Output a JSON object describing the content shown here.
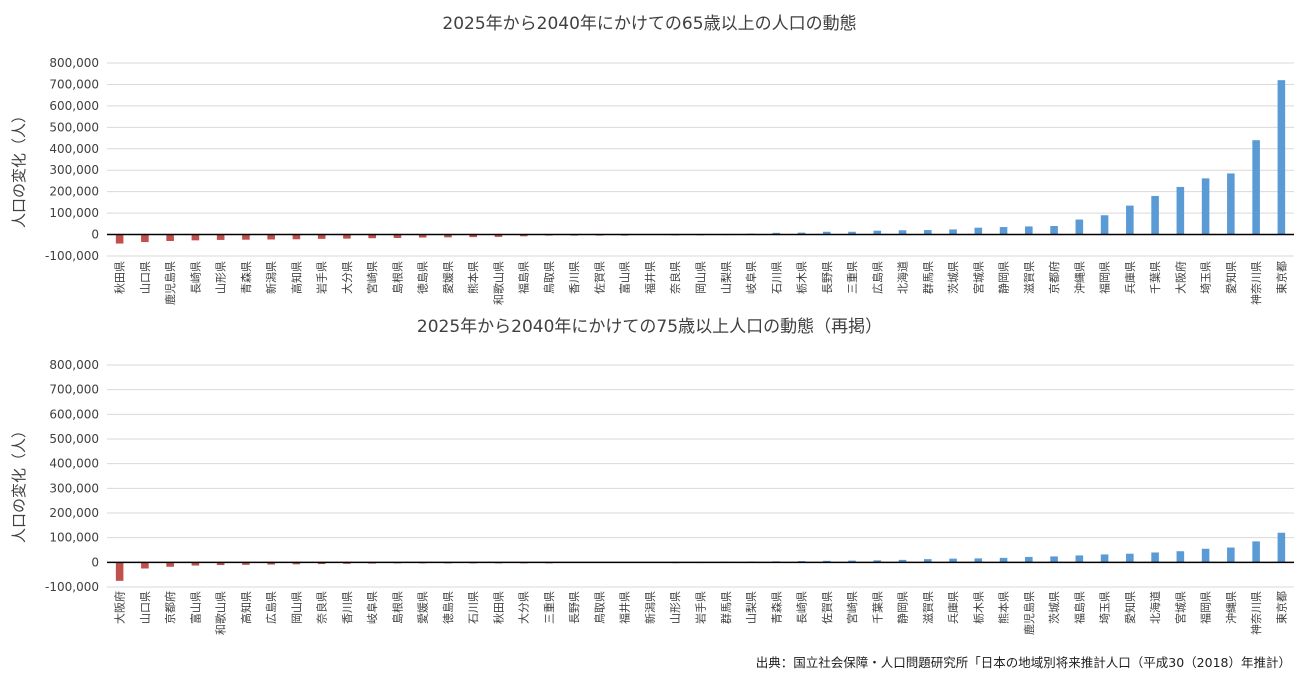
{
  "source_note": "出典：国立社会保障・人口問題研究所「日本の地域別将来推計人口（平成30（2018）年推計）",
  "colors": {
    "positive": "#5b9bd5",
    "negative": "#c0504d",
    "grid": "#d9d9d9",
    "axis": "#000000"
  },
  "chart_data": [
    {
      "type": "bar",
      "title": "2025年から2040年にかけての65歳以上の人口の動態",
      "ylabel": "人口の変化（人）",
      "ylim": [
        -100000,
        800000
      ],
      "yticks": [
        "-100,000",
        "0",
        "100,000",
        "200,000",
        "300,000",
        "400,000",
        "500,000",
        "600,000",
        "700,000",
        "800,000"
      ],
      "grid": true,
      "categories": [
        "秋田県",
        "山口県",
        "鹿児島県",
        "長崎県",
        "山形県",
        "青森県",
        "新潟県",
        "高知県",
        "岩手県",
        "大分県",
        "宮崎県",
        "島根県",
        "徳島県",
        "愛媛県",
        "熊本県",
        "和歌山県",
        "福島県",
        "鳥取県",
        "香川県",
        "佐賀県",
        "富山県",
        "福井県",
        "奈良県",
        "岡山県",
        "山梨県",
        "岐阜県",
        "石川県",
        "栃木県",
        "長野県",
        "三重県",
        "広島県",
        "北海道",
        "群馬県",
        "茨城県",
        "宮城県",
        "静岡県",
        "滋賀県",
        "京都府",
        "沖縄県",
        "福岡県",
        "兵庫県",
        "千葉県",
        "大阪府",
        "埼玉県",
        "愛知県",
        "神奈川県",
        "東京都"
      ],
      "values": [
        -42000,
        -35000,
        -30000,
        -27000,
        -25000,
        -24000,
        -23000,
        -22000,
        -20000,
        -19000,
        -17000,
        -16000,
        -14000,
        -13000,
        -12000,
        -11000,
        -8000,
        -4000,
        -2000,
        -1000,
        -500,
        0,
        500,
        1000,
        2000,
        4000,
        8000,
        9000,
        13000,
        13000,
        18000,
        20000,
        21000,
        24000,
        32000,
        35000,
        38000,
        40000,
        70000,
        90000,
        135000,
        180000,
        222000,
        262000,
        285000,
        440000,
        720000
      ]
    },
    {
      "type": "bar",
      "title": "2025年から2040年にかけての75歳以上人口の動態（再掲）",
      "ylabel": "人口の変化（人）",
      "ylim": [
        -100000,
        800000
      ],
      "yticks": [
        "-100,000",
        "0",
        "100,000",
        "200,000",
        "300,000",
        "400,000",
        "500,000",
        "600,000",
        "700,000",
        "800,000"
      ],
      "grid": true,
      "categories": [
        "大阪府",
        "山口県",
        "京都府",
        "富山県",
        "和歌山県",
        "高知県",
        "広島県",
        "岡山県",
        "奈良県",
        "香川県",
        "岐阜県",
        "島根県",
        "愛媛県",
        "徳島県",
        "石川県",
        "秋田県",
        "大分県",
        "三重県",
        "長野県",
        "鳥取県",
        "福井県",
        "新潟県",
        "山形県",
        "岩手県",
        "群馬県",
        "山梨県",
        "青森県",
        "長崎県",
        "佐賀県",
        "宮崎県",
        "千葉県",
        "静岡県",
        "滋賀県",
        "兵庫県",
        "栃木県",
        "熊本県",
        "鹿児島県",
        "茨城県",
        "福島県",
        "埼玉県",
        "愛知県",
        "北海道",
        "宮城県",
        "福岡県",
        "沖縄県",
        "神奈川県",
        "東京都"
      ],
      "values": [
        -75000,
        -25000,
        -18000,
        -13000,
        -11000,
        -10000,
        -9000,
        -8000,
        -7000,
        -6000,
        -5000,
        -4000,
        -3000,
        -2500,
        -2000,
        -1500,
        -1000,
        -500,
        0,
        0,
        0,
        0,
        500,
        1000,
        2000,
        3000,
        4000,
        5000,
        6000,
        7000,
        8000,
        10000,
        13000,
        15000,
        16000,
        18000,
        22000,
        24000,
        28000,
        32000,
        35000,
        40000,
        45000,
        55000,
        60000,
        85000,
        120000
      ]
    }
  ]
}
